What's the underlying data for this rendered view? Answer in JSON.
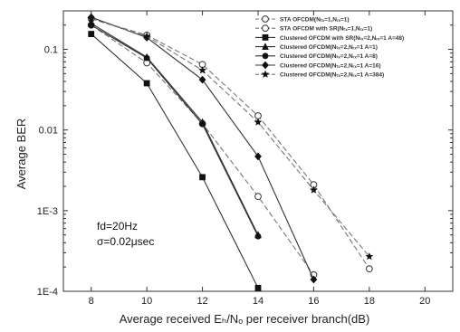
{
  "chart_data": {
    "type": "line",
    "title": "",
    "xlabel": "Average received Eₕ/Nₒ per receiver branch(dB)",
    "ylabel": "Average  BER",
    "xlim": [
      7,
      21
    ],
    "ylim": [
      0.0001,
      0.3
    ],
    "yscale": "log",
    "xticks": [
      "8",
      "10",
      "12",
      "14",
      "16",
      "18",
      "20"
    ],
    "yticks": [
      {
        "v": 0.1,
        "label": "0.1"
      },
      {
        "v": 0.01,
        "label": "0.01"
      },
      {
        "v": 0.001,
        "label": "1E-3"
      },
      {
        "v": 0.0001,
        "label": "1E-4"
      }
    ],
    "grid": false,
    "legend_position": "top-right",
    "annotations": [
      "fd=20Hz",
      "σ=0.02μsec"
    ],
    "series": [
      {
        "name": "STA OFCDM(Nₜₓ=1,Nᵣₓ=1)",
        "marker": "circle-open",
        "dash": "dashed",
        "x": [
          8,
          10,
          12,
          14,
          16,
          18
        ],
        "y": [
          0.24,
          0.15,
          0.065,
          0.015,
          0.0021,
          0.00019
        ]
      },
      {
        "name": "STA OFCDM with SR(Nₜₓ=1,Nᵣₓ=1)",
        "marker": "circle-open",
        "dash": "dashed",
        "x": [
          8,
          10,
          12,
          14,
          16
        ],
        "y": [
          0.2,
          0.068,
          0.012,
          0.0015,
          0.00016
        ]
      },
      {
        "name": "Clustered OFCDM with SR(Nₜₓ=2,Nᵣₓ=1 A=48)",
        "marker": "square-filled",
        "dash": "solid",
        "x": [
          8,
          10,
          12,
          14
        ],
        "y": [
          0.155,
          0.038,
          0.0026,
          0.00011
        ]
      },
      {
        "name": "Clustered OFCDM(Nₜₓ=2,Nᵣₓ=1 A=1)",
        "marker": "triangle-filled",
        "dash": "solid",
        "x": [
          8,
          10,
          12,
          14
        ],
        "y": [
          0.21,
          0.08,
          0.0125,
          0.0005
        ]
      },
      {
        "name": "Clustered OFCDM(Nₜₓ=2,Nᵣₓ=1 A=8)",
        "marker": "circle-filled",
        "dash": "solid",
        "x": [
          8,
          10,
          12,
          14
        ],
        "y": [
          0.2,
          0.078,
          0.0118,
          0.00048
        ]
      },
      {
        "name": "Clustered OFCDM(Nₜₓ=2,Nᵣₓ=1 A=16)",
        "marker": "diamond-filled",
        "dash": "solid",
        "x": [
          8,
          10,
          12,
          14,
          16
        ],
        "y": [
          0.25,
          0.14,
          0.042,
          0.0047,
          0.00014
        ]
      },
      {
        "name": "Clustered OFCDM(Nₜₓ=2,Nᵣₓ=1 A=384)",
        "marker": "star-filled",
        "dash": "dashed",
        "x": [
          8,
          10,
          12,
          14,
          16,
          18
        ],
        "y": [
          0.24,
          0.145,
          0.055,
          0.0125,
          0.0018,
          0.00027
        ]
      }
    ]
  }
}
